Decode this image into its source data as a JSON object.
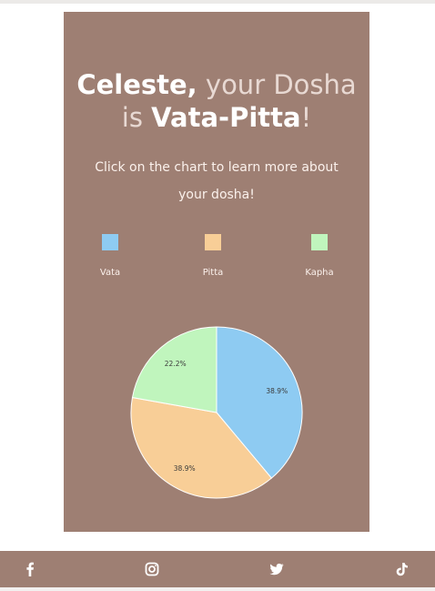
{
  "heading": {
    "name": "Celeste,",
    "phrase": "your Dosha",
    "connector": "is",
    "dosha": "Vata-Pitta",
    "exclaim": "!"
  },
  "subtitle": "Click on the chart to learn more about your dosha!",
  "legend": [
    {
      "label": "Vata",
      "color": "#8ecbf2"
    },
    {
      "label": "Pitta",
      "color": "#f8ce97"
    },
    {
      "label": "Kapha",
      "color": "#c0f5bd"
    }
  ],
  "chart_data": {
    "type": "pie",
    "categories": [
      "Vata",
      "Pitta",
      "Kapha"
    ],
    "values": [
      38.9,
      38.9,
      22.2
    ],
    "labels": [
      "38.9%",
      "38.9%",
      "22.2%"
    ],
    "colors": [
      "#8ecbf2",
      "#f8ce97",
      "#c0f5bd"
    ],
    "title": ""
  },
  "footer": {
    "icons": [
      "facebook-icon",
      "instagram-icon",
      "twitter-icon",
      "tiktok-icon"
    ]
  }
}
